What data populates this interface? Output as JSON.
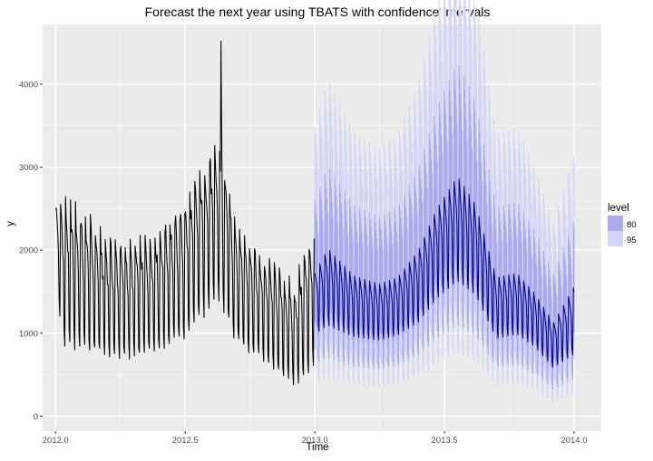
{
  "chart_data": {
    "type": "line",
    "title": "Forecast the next year using TBATS with confidence intervals",
    "xlabel": "Time",
    "ylabel": "y",
    "xlim": [
      1.9948,
      2014.105
    ],
    "x_range": [
      2011.95,
      2014.105
    ],
    "ylim": [
      -180,
      4720
    ],
    "x_ticks": [
      2012.0,
      2012.5,
      2013.0,
      2013.5,
      2014.0
    ],
    "x_tick_labels": [
      "2012.0",
      "2012.5",
      "2013.0",
      "2013.5",
      "2014.0"
    ],
    "y_ticks": [
      0,
      1000,
      2000,
      3000,
      4000
    ],
    "y_tick_labels": [
      "0",
      "1000",
      "2000",
      "3000",
      "4000"
    ],
    "grid": true,
    "legend": {
      "title": "level",
      "position": "right",
      "entries": [
        {
          "label": "80",
          "color": "#a9abee"
        },
        {
          "label": "95",
          "color": "#d4d5f7"
        }
      ]
    },
    "series": [
      {
        "kind": "observed",
        "color": "#000000",
        "approx_shape": "daily series with weekly oscillation",
        "x_start": 2012.0,
        "x_end": 2013.0,
        "knots": [
          {
            "x": 2012.0,
            "low": 1500,
            "high": 2600
          },
          {
            "x": 2012.03,
            "low": 740,
            "high": 2650
          },
          {
            "x": 2012.1,
            "low": 720,
            "high": 2500
          },
          {
            "x": 2012.2,
            "low": 650,
            "high": 2150
          },
          {
            "x": 2012.3,
            "low": 620,
            "high": 2100
          },
          {
            "x": 2012.4,
            "low": 720,
            "high": 2300
          },
          {
            "x": 2012.5,
            "low": 850,
            "high": 2600
          },
          {
            "x": 2012.58,
            "low": 1150,
            "high": 3150
          },
          {
            "x": 2012.63,
            "low": 1300,
            "high": 3300
          },
          {
            "x": 2012.7,
            "low": 800,
            "high": 2350
          },
          {
            "x": 2012.78,
            "low": 650,
            "high": 2000
          },
          {
            "x": 2012.85,
            "low": 500,
            "high": 1800
          },
          {
            "x": 2012.92,
            "low": 280,
            "high": 1600
          },
          {
            "x": 2013.0,
            "low": 500,
            "high": 2400
          }
        ],
        "peaks": [
          {
            "x": 2012.638,
            "y": 4520
          },
          {
            "x": 2012.638,
            "y": 3370
          }
        ]
      },
      {
        "kind": "forecast",
        "color": "#00008b",
        "approx_shape": "mean forecast with weekly oscillation and 80/95 intervals",
        "x_start": 2013.0,
        "x_end": 2014.0,
        "knots": [
          {
            "x": 2013.0,
            "mid": 1350,
            "amp": 380
          },
          {
            "x": 2013.05,
            "mid": 1550,
            "amp": 480
          },
          {
            "x": 2013.15,
            "mid": 1320,
            "amp": 380
          },
          {
            "x": 2013.25,
            "mid": 1250,
            "amp": 350
          },
          {
            "x": 2013.32,
            "mid": 1320,
            "amp": 360
          },
          {
            "x": 2013.4,
            "mid": 1560,
            "amp": 450
          },
          {
            "x": 2013.47,
            "mid": 1950,
            "amp": 560
          },
          {
            "x": 2013.55,
            "mid": 2250,
            "amp": 650
          },
          {
            "x": 2013.62,
            "mid": 2000,
            "amp": 560
          },
          {
            "x": 2013.7,
            "mid": 1300,
            "amp": 380
          },
          {
            "x": 2013.78,
            "mid": 1350,
            "amp": 380
          },
          {
            "x": 2013.85,
            "mid": 1150,
            "amp": 330
          },
          {
            "x": 2013.92,
            "mid": 850,
            "amp": 280
          },
          {
            "x": 2014.0,
            "mid": 1150,
            "amp": 420
          }
        ]
      }
    ]
  }
}
